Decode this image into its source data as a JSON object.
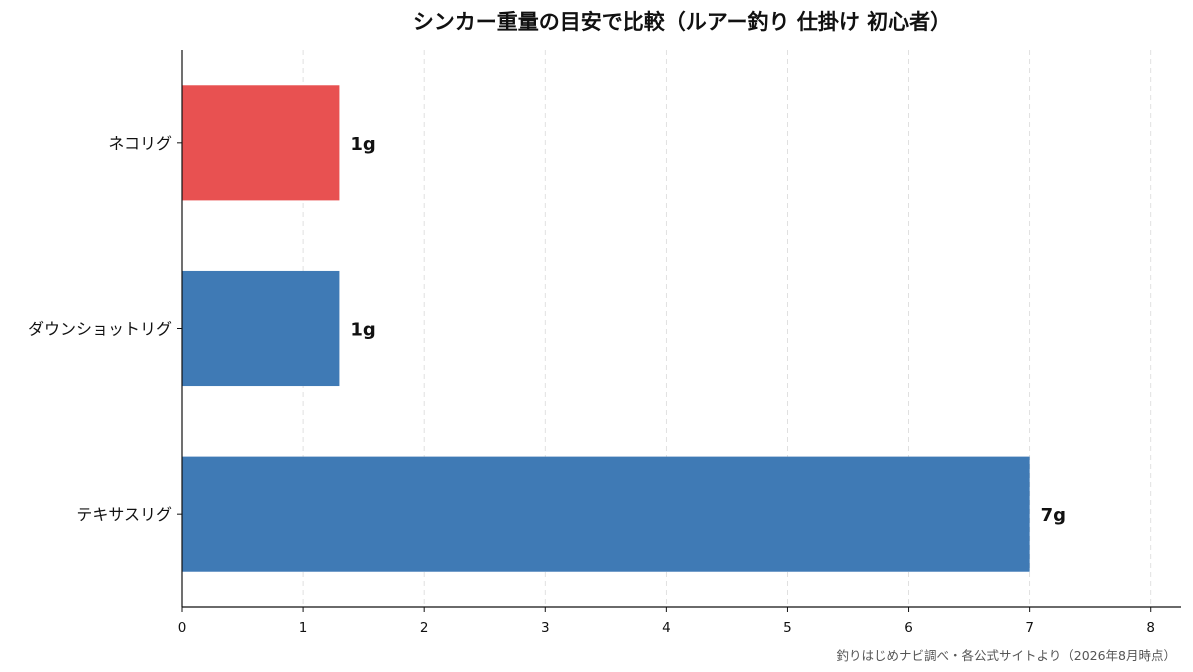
{
  "chart_data": {
    "type": "bar",
    "orientation": "horizontal",
    "title": "シンカー重量の目安で比較（ルアー釣り 仕掛け 初心者）",
    "xlabel": "",
    "ylabel": "",
    "xlim": [
      0,
      8.25
    ],
    "xticks": [
      0,
      1,
      2,
      3,
      4,
      5,
      6,
      7,
      8
    ],
    "grid": "vertical-dashed",
    "categories": [
      "ネコリグ",
      "ダウンショットリグ",
      "テキサスリグ"
    ],
    "values": [
      1.3,
      1.3,
      7
    ],
    "data_labels": [
      "1g",
      "1g",
      "7g"
    ],
    "colors": [
      "#e85151",
      "#3f7ab5",
      "#3f7ab5"
    ]
  },
  "source_note": "釣りはじめナビ調べ・各公式サイトより（2026年8月時点）"
}
